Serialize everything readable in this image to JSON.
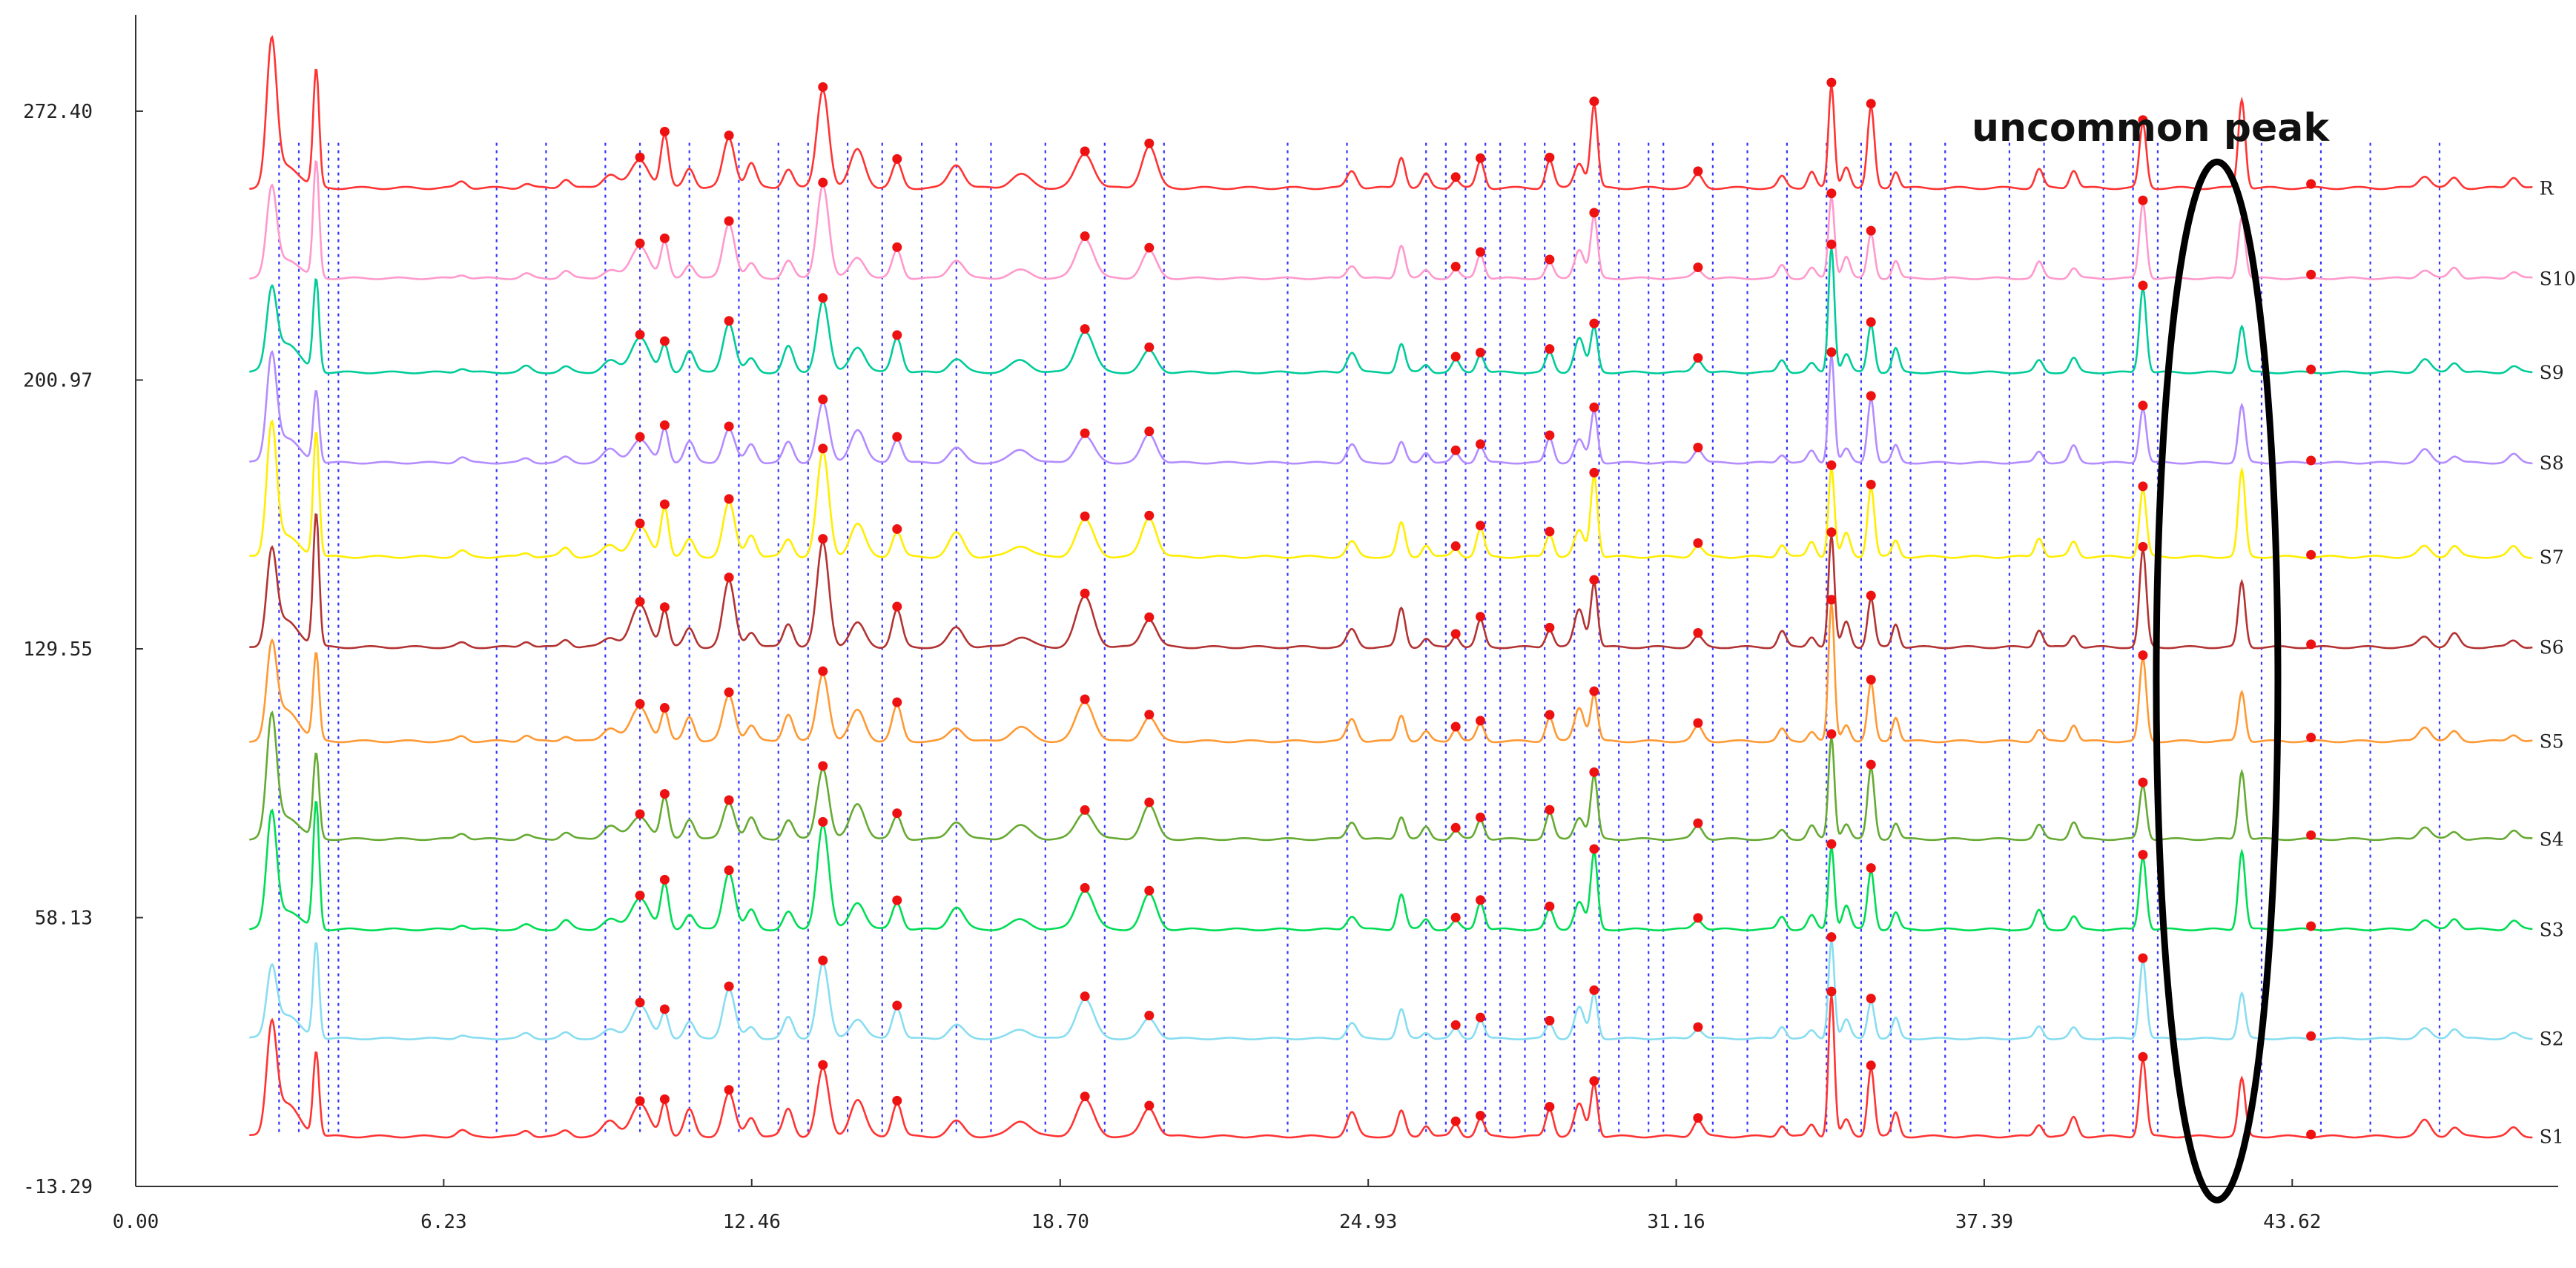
{
  "chart_data": {
    "type": "line",
    "title": "",
    "xlabel": "",
    "ylabel": "",
    "xlim": [
      0,
      49
    ],
    "ylim": [
      -13.29,
      298
    ],
    "x_ticks": [
      "0.00",
      "6.23",
      "12.46",
      "18.70",
      "24.93",
      "31.16",
      "37.39",
      "43.62"
    ],
    "x_tick_values": [
      0.0,
      6.23,
      12.46,
      18.7,
      24.93,
      31.16,
      37.39,
      43.62
    ],
    "y_ticks": [
      "-13.29",
      "58.13",
      "129.55",
      "200.97",
      "272.40"
    ],
    "y_tick_values": [
      -13.29,
      58.13,
      129.55,
      200.97,
      272.4
    ],
    "grid": false,
    "annotation": {
      "text": "uncommon peak",
      "x_center": 42.1,
      "y_center": 121
    },
    "common_peak_times": [
      2.9,
      3.3,
      3.9,
      4.1,
      7.3,
      8.3,
      9.5,
      10.2,
      11.2,
      12.2,
      13.0,
      13.6,
      14.4,
      15.1,
      15.9,
      16.6,
      17.3,
      18.4,
      19.6,
      20.8,
      23.3,
      24.5,
      26.1,
      26.5,
      26.9,
      27.3,
      27.6,
      28.1,
      28.5,
      29.1,
      29.6,
      30.0,
      30.6,
      30.9,
      31.9,
      32.6,
      33.4,
      34.2,
      34.9,
      35.5,
      35.9,
      36.6,
      37.9,
      38.6,
      39.8,
      40.4,
      40.9,
      43.0,
      44.2,
      45.2,
      46.6
    ],
    "series": [
      {
        "name": "R",
        "color": "#ff3333",
        "baseline": 252,
        "scale": 1.0
      },
      {
        "name": "S10",
        "color": "#ff99cc",
        "baseline": 228,
        "scale": 0.8
      },
      {
        "name": "S9",
        "color": "#00cc99",
        "baseline": 203,
        "scale": 0.85
      },
      {
        "name": "S8",
        "color": "#b38cff",
        "baseline": 179,
        "scale": 0.8
      },
      {
        "name": "S7",
        "color": "#ffee00",
        "baseline": 154,
        "scale": 0.95
      },
      {
        "name": "S6",
        "color": "#b33333",
        "baseline": 130,
        "scale": 0.95
      },
      {
        "name": "S5",
        "color": "#ff9933",
        "baseline": 105,
        "scale": 0.9
      },
      {
        "name": "S4",
        "color": "#66aa33",
        "baseline": 79,
        "scale": 0.85
      },
      {
        "name": "S3",
        "color": "#00dd55",
        "baseline": 55,
        "scale": 0.9
      },
      {
        "name": "S2",
        "color": "#88ddf0",
        "baseline": 26,
        "scale": 0.75
      },
      {
        "name": "S1",
        "color": "#ff3333",
        "baseline": 0,
        "scale": 0.95
      }
    ],
    "peaks": [
      {
        "t": 2.75,
        "h": 1.0,
        "w": 0.1
      },
      {
        "t": 3.05,
        "h": 0.25,
        "w": 0.25
      },
      {
        "t": 3.65,
        "h": 1.05,
        "w": 0.06
      },
      {
        "t": 6.6,
        "h": 0.05,
        "w": 0.1
      },
      {
        "t": 7.9,
        "h": 0.05,
        "w": 0.1
      },
      {
        "t": 8.7,
        "h": 0.07,
        "w": 0.1
      },
      {
        "t": 9.6,
        "h": 0.12,
        "w": 0.15
      },
      {
        "t": 10.2,
        "h": 0.32,
        "w": 0.18
      },
      {
        "t": 10.7,
        "h": 0.38,
        "w": 0.08
      },
      {
        "t": 11.2,
        "h": 0.2,
        "w": 0.1
      },
      {
        "t": 12.0,
        "h": 0.5,
        "w": 0.12
      },
      {
        "t": 12.45,
        "h": 0.18,
        "w": 0.1
      },
      {
        "t": 13.2,
        "h": 0.22,
        "w": 0.1
      },
      {
        "t": 13.9,
        "h": 0.85,
        "w": 0.12
      },
      {
        "t": 14.6,
        "h": 0.3,
        "w": 0.15
      },
      {
        "t": 15.4,
        "h": 0.3,
        "w": 0.1
      },
      {
        "t": 16.6,
        "h": 0.18,
        "w": 0.15
      },
      {
        "t": 17.9,
        "h": 0.12,
        "w": 0.2
      },
      {
        "t": 19.2,
        "h": 0.38,
        "w": 0.18
      },
      {
        "t": 20.5,
        "h": 0.3,
        "w": 0.15
      },
      {
        "t": 24.6,
        "h": 0.18,
        "w": 0.1
      },
      {
        "t": 25.6,
        "h": 0.3,
        "w": 0.08
      },
      {
        "t": 26.1,
        "h": 0.1,
        "w": 0.08
      },
      {
        "t": 26.7,
        "h": 0.1,
        "w": 0.08
      },
      {
        "t": 27.2,
        "h": 0.22,
        "w": 0.08
      },
      {
        "t": 28.6,
        "h": 0.22,
        "w": 0.08
      },
      {
        "t": 29.2,
        "h": 0.3,
        "w": 0.1
      },
      {
        "t": 29.5,
        "h": 0.62,
        "w": 0.07
      },
      {
        "t": 31.6,
        "h": 0.12,
        "w": 0.1
      },
      {
        "t": 33.3,
        "h": 0.12,
        "w": 0.08
      },
      {
        "t": 33.9,
        "h": 0.12,
        "w": 0.08
      },
      {
        "t": 34.3,
        "h": 1.1,
        "w": 0.06
      },
      {
        "t": 34.6,
        "h": 0.2,
        "w": 0.08
      },
      {
        "t": 35.1,
        "h": 0.6,
        "w": 0.07
      },
      {
        "t": 35.6,
        "h": 0.2,
        "w": 0.07
      },
      {
        "t": 38.5,
        "h": 0.15,
        "w": 0.08
      },
      {
        "t": 39.2,
        "h": 0.15,
        "w": 0.08
      },
      {
        "t": 40.6,
        "h": 0.75,
        "w": 0.07
      },
      {
        "t": 42.6,
        "h": 0.65,
        "w": 0.07
      },
      {
        "t": 46.3,
        "h": 0.12,
        "w": 0.12
      },
      {
        "t": 46.9,
        "h": 0.1,
        "w": 0.1
      },
      {
        "t": 48.1,
        "h": 0.08,
        "w": 0.1
      }
    ]
  }
}
